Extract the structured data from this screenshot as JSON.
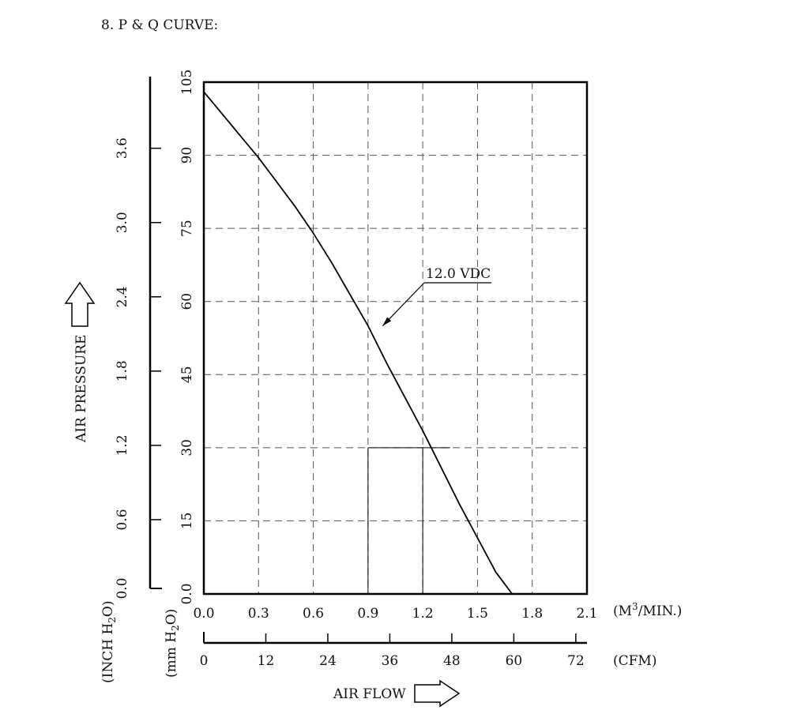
{
  "chart_data": {
    "type": "line",
    "title": "8. P & Q CURVE:",
    "x_primary": {
      "unit": "(M3/MIN.)",
      "unit_base": "(M",
      "unit_sup": "3",
      "unit_rest": "/MIN.)",
      "ticks": [
        "0.0",
        "0.3",
        "0.6",
        "0.9",
        "1.2",
        "1.5",
        "1.8",
        "2.1"
      ],
      "xlim": [
        0,
        2.1
      ]
    },
    "x_secondary": {
      "unit": "(CFM)",
      "ticks": [
        "0",
        "12",
        "24",
        "36",
        "48",
        "60",
        "72"
      ],
      "xlim": [
        0,
        74.16
      ]
    },
    "xlabel": "AIR FLOW",
    "y_primary": {
      "unit": "(mm H2O)",
      "unit_base": "(mm H",
      "unit_sub": "2",
      "unit_rest": "O)",
      "ticks": [
        "0.0",
        "15",
        "30",
        "45",
        "60",
        "75",
        "90",
        "105"
      ],
      "ylim": [
        0,
        105
      ]
    },
    "y_secondary": {
      "unit": "(INCH H2O)",
      "unit_base": "(INCH H",
      "unit_sub": "2",
      "unit_rest": "O)",
      "ticks": [
        "0.0",
        "0.6",
        "1.2",
        "1.8",
        "2.4",
        "3.0",
        "3.6"
      ],
      "ylim": [
        0,
        4.134
      ]
    },
    "ylabel": "AIR PRESSURE",
    "grid": true,
    "series": [
      {
        "name": "12.0 VDC",
        "x": [
          0,
          0.1,
          0.2,
          0.3,
          0.4,
          0.5,
          0.6,
          0.7,
          0.8,
          0.9,
          1.0,
          1.1,
          1.2,
          1.3,
          1.4,
          1.5,
          1.6,
          1.7
        ],
        "y": [
          103,
          98.5,
          94,
          89.5,
          84.5,
          79.5,
          74,
          68,
          61.5,
          55,
          47.5,
          40.5,
          33.5,
          26,
          18.5,
          11.5,
          4.5,
          -0.5
        ]
      }
    ],
    "annotation": {
      "text": "12.0 VDC",
      "points_to": [
        0.98,
        55
      ]
    },
    "reference_lines": {
      "x": [
        0.9,
        1.2
      ],
      "y": 30
    }
  }
}
